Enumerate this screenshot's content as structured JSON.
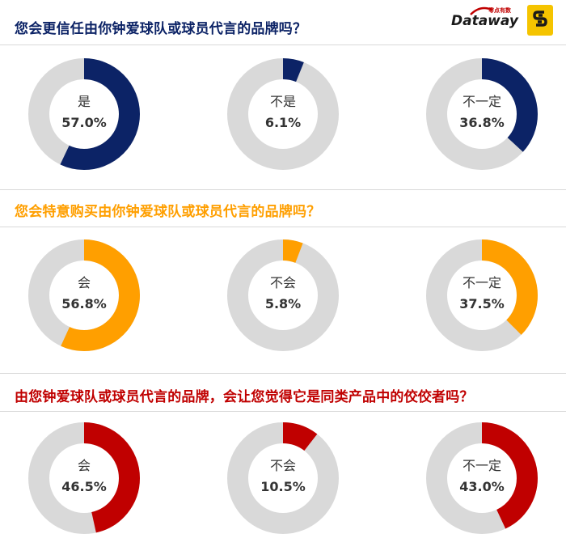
{
  "brand": {
    "logo_text": "Dataway",
    "logo_subtext": "零点有数",
    "badge_icon": "s-badge-icon"
  },
  "colors": {
    "remainder": "#d9d9d9",
    "section_1": "#0c2366",
    "section_2": "#ff9f00",
    "section_3": "#c00000"
  },
  "chart_data": [
    {
      "type": "pie",
      "title": "您会更信任由你钟爱球队或球员代言的品牌吗？",
      "slices": [
        {
          "label": "是",
          "value": 57.0,
          "value_label": "57.0%"
        },
        {
          "label": "不是",
          "value": 6.1,
          "value_label": "6.1%"
        },
        {
          "label": "不一定",
          "value": 36.8,
          "value_label": "36.8%"
        }
      ]
    },
    {
      "type": "pie",
      "title": "您会特意购买由你钟爱球队或球员代言的品牌吗？",
      "slices": [
        {
          "label": "会",
          "value": 56.8,
          "value_label": "56.8%"
        },
        {
          "label": "不会",
          "value": 5.8,
          "value_label": "5.8%"
        },
        {
          "label": "不一定",
          "value": 37.5,
          "value_label": "37.5%"
        }
      ]
    },
    {
      "type": "pie",
      "title": "由您钟爱球队或球员代言的品牌，会让您觉得它是同类产品中的佼佼者吗？",
      "slices": [
        {
          "label": "会",
          "value": 46.5,
          "value_label": "46.5%"
        },
        {
          "label": "不会",
          "value": 10.5,
          "value_label": "10.5%"
        },
        {
          "label": "不一定",
          "value": 43.0,
          "value_label": "43.0%"
        }
      ]
    }
  ]
}
